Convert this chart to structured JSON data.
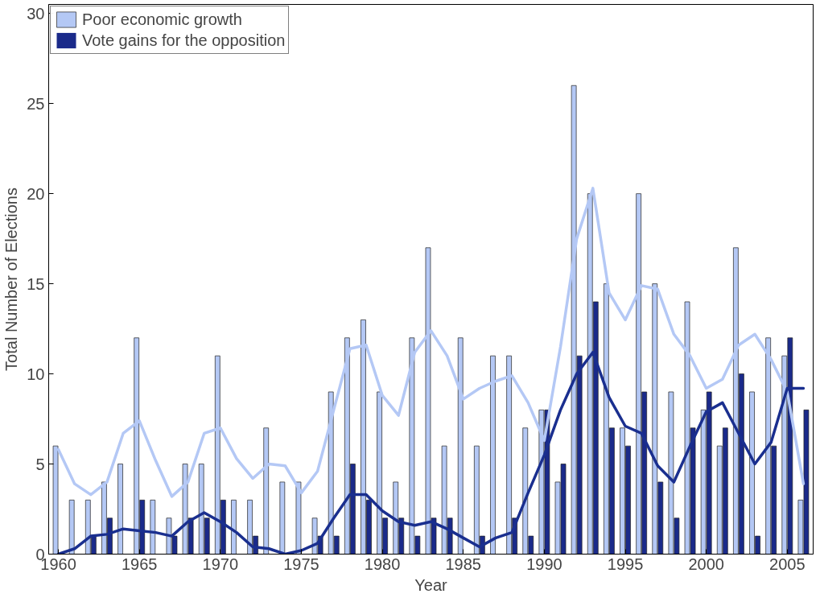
{
  "chart_data": {
    "type": "bar",
    "xlabel": "Year",
    "ylabel": "Total Number of Elections",
    "x": [
      1960,
      1961,
      1962,
      1963,
      1964,
      1965,
      1966,
      1967,
      1968,
      1969,
      1970,
      1971,
      1972,
      1973,
      1974,
      1975,
      1976,
      1977,
      1978,
      1979,
      1980,
      1981,
      1982,
      1983,
      1984,
      1985,
      1986,
      1987,
      1988,
      1989,
      1990,
      1991,
      1992,
      1993,
      1994,
      1995,
      1996,
      1997,
      1998,
      1999,
      2000,
      2001,
      2002,
      2003,
      2004,
      2005,
      2006
    ],
    "series": [
      {
        "name": "Poor economic growth",
        "color": "#b4c8f5",
        "values": [
          6,
          3,
          3,
          4,
          5,
          12,
          3,
          2,
          5,
          5,
          11,
          3,
          3,
          7,
          4,
          4,
          2,
          9,
          12,
          13,
          9,
          4,
          12,
          17,
          6,
          12,
          6,
          11,
          11,
          7,
          8,
          4,
          26,
          20,
          15,
          7,
          20,
          15,
          9,
          14,
          8,
          6,
          17,
          9,
          12,
          11,
          3
        ]
      },
      {
        "name": "Vote gains for the opposition",
        "color": "#1a2a8a",
        "values": [
          0,
          0,
          1,
          2,
          0,
          3,
          0,
          1,
          2,
          2,
          3,
          0,
          1,
          0,
          0,
          0,
          1,
          1,
          5,
          3,
          2,
          2,
          1,
          2,
          2,
          0,
          1,
          0,
          2,
          1,
          8,
          5,
          11,
          14,
          7,
          6,
          9,
          4,
          2,
          7,
          9,
          7,
          10,
          1,
          6,
          12,
          8
        ]
      },
      {
        "type": "line",
        "color": "#b4c8f5",
        "values": [
          5.8,
          3.9,
          3.3,
          4,
          6.7,
          7.4,
          5.2,
          3.2,
          4,
          6.7,
          7,
          5.3,
          4.2,
          5,
          4.9,
          3.4,
          4.6,
          8,
          11.4,
          11.6,
          8.8,
          7.7,
          11.2,
          12.4,
          11,
          8.6,
          9.2,
          9.6,
          9.9,
          8.4,
          6.3,
          11.5,
          17.5,
          20.3,
          14.5,
          13,
          14.9,
          14.7,
          12.2,
          11,
          9.2,
          9.7,
          11.6,
          12.2,
          10.8,
          9,
          3.9
        ]
      },
      {
        "type": "line",
        "color": "#1a2f8f",
        "values": [
          0,
          0.3,
          1,
          1.1,
          1.4,
          1.3,
          1.2,
          1,
          1.8,
          2.3,
          1.8,
          1.2,
          0.4,
          0.3,
          0,
          0.2,
          0.6,
          2,
          3.3,
          3.3,
          2.4,
          1.8,
          1.6,
          1.8,
          1.4,
          0.9,
          0.4,
          0.9,
          1.2,
          3.4,
          5.5,
          8,
          10,
          11.2,
          8.7,
          7.1,
          6.7,
          4.9,
          4,
          6,
          7.9,
          8.4,
          6.7,
          5,
          6.2,
          9.2,
          9.2
        ]
      }
    ],
    "xlim": [
      1959.4,
      2006.6
    ],
    "xticks": [
      1960,
      1965,
      1970,
      1975,
      1980,
      1985,
      1990,
      1995,
      2000,
      2005
    ],
    "ylim": [
      0,
      30.5
    ],
    "yticks": [
      0,
      5,
      10,
      15,
      20,
      25,
      30
    ],
    "grid": false,
    "legend": "top left"
  }
}
